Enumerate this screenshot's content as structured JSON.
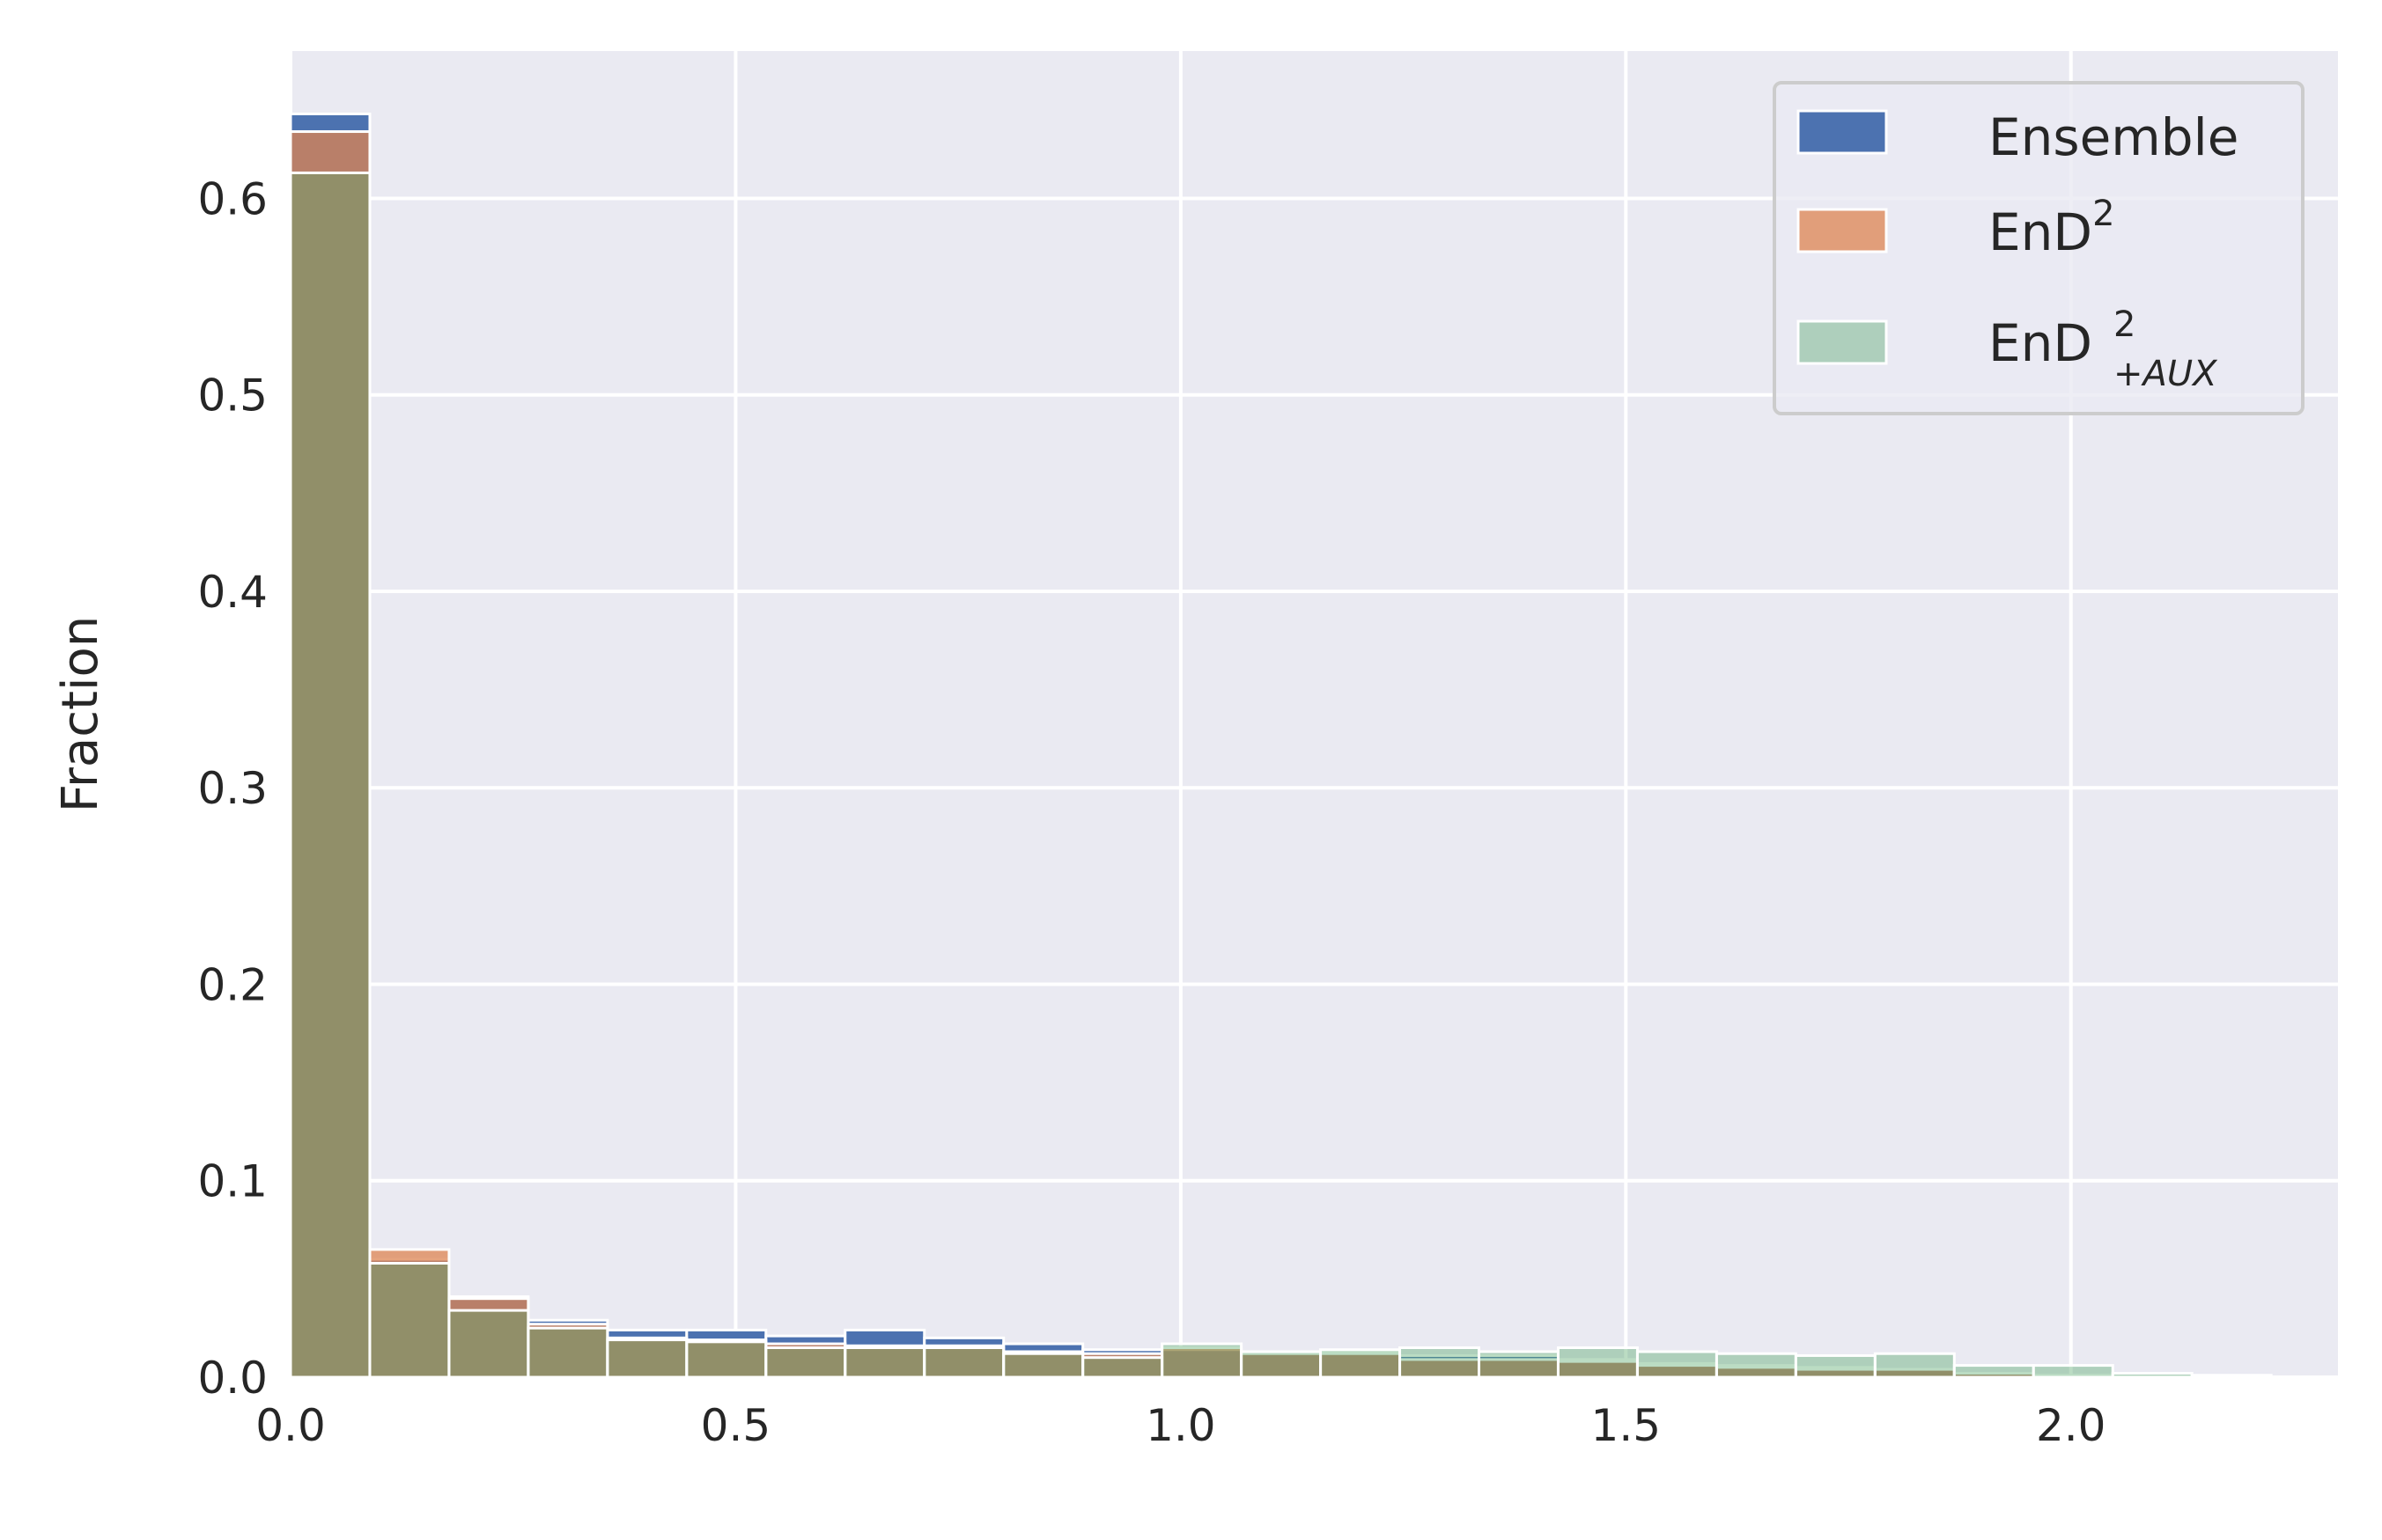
{
  "chart_data": {
    "type": "bar",
    "subtype": "overlaid-histogram",
    "title": "",
    "xlabel": "",
    "ylabel": "Fraction",
    "xlim": [
      0.0,
      2.3
    ],
    "ylim": [
      0.0,
      0.675
    ],
    "x_ticks": [
      "0.0",
      "0.5",
      "1.0",
      "1.5",
      "2.0"
    ],
    "y_ticks": [
      "0.0",
      "0.1",
      "0.2",
      "0.3",
      "0.4",
      "0.5",
      "0.6"
    ],
    "grid": true,
    "legend_position": "top-right",
    "bin_width": 0.089,
    "bin_starts": [
      0.0,
      0.089,
      0.178,
      0.267,
      0.356,
      0.445,
      0.534,
      0.623,
      0.712,
      0.801,
      0.89,
      0.979,
      1.068,
      1.157,
      1.246,
      1.335,
      1.424,
      1.513,
      1.602,
      1.691,
      1.78,
      1.869,
      1.958,
      2.047,
      2.136
    ],
    "series": [
      {
        "name": "Ensemble",
        "color": "#4c72b0",
        "opacity": 1.0,
        "values": [
          0.643,
          0.06,
          0.041,
          0.029,
          0.024,
          0.024,
          0.021,
          0.024,
          0.02,
          0.017,
          0.014,
          0.014,
          0.012,
          0.013,
          0.011,
          0.011,
          0.009,
          0.007,
          0.006,
          0.005,
          0.004,
          0.002,
          0.001,
          0.0,
          0.0
        ]
      },
      {
        "name": "EnD",
        "name_superscript": "2",
        "color": "#dd8452",
        "opacity": 0.75,
        "values": [
          0.634,
          0.065,
          0.04,
          0.027,
          0.02,
          0.019,
          0.017,
          0.016,
          0.016,
          0.013,
          0.012,
          0.015,
          0.012,
          0.012,
          0.009,
          0.009,
          0.008,
          0.006,
          0.005,
          0.004,
          0.004,
          0.002,
          0.001,
          0.0,
          0.0
        ]
      },
      {
        "name": "EnD",
        "name_superscript": "2",
        "name_subscript": "+AUX",
        "color": "#55a868",
        "opacity": 0.4,
        "values": [
          0.613,
          0.058,
          0.034,
          0.025,
          0.019,
          0.018,
          0.015,
          0.015,
          0.015,
          0.012,
          0.01,
          0.017,
          0.013,
          0.014,
          0.015,
          0.013,
          0.015,
          0.013,
          0.012,
          0.011,
          0.012,
          0.006,
          0.006,
          0.002,
          0.001
        ]
      }
    ]
  }
}
